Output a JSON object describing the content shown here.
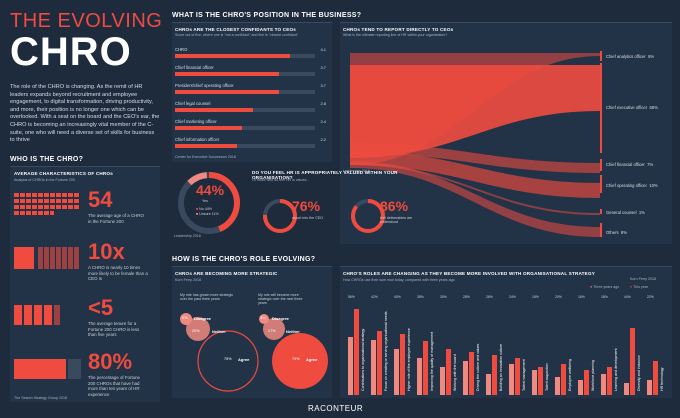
{
  "header": {
    "title_small": "THE EVOLVING",
    "title_big": "CHRO"
  },
  "intro": "The role of the CHRO is changing. As the remit of HR leaders expands beyond recruitment and employee engagement, to digital transformation, driving productivity, and more, their position is no longer one which can be overlooked. With a seat on the board and the CEO's ear, the CHRO is becoming an increasingly vital member of the C-suite, one who will need a diverse set of skills for business to thrive",
  "who": {
    "heading": "WHO IS THE CHRO?",
    "panel_title": "AVERAGE CHARACTERISTICS OF CHROs",
    "panel_sub": "Analysis of CHROs in the Fortune 200",
    "stats": [
      {
        "value": "54",
        "text": "The average age of a CHRO in the Fortune 200"
      },
      {
        "value": "10x",
        "text": "A CHRO is nearly 10 times more likely to be female than a CEO is"
      },
      {
        "value": "<5",
        "text": "The average tenure for a Fortune 200 CHRO is less than five years"
      },
      {
        "value": "80%",
        "text": "The percentage of Fortune 200 CHROs that have had more than ten years of HR experience"
      }
    ],
    "source": "The Search Strategy Group 2018"
  },
  "position": {
    "heading": "WHAT IS THE CHRO'S POSITION IN THE BUSINESS?",
    "confidants": {
      "title": "CHROs ARE THE CLOSEST CONFIDANTS TO CEOs",
      "sub": "Score out of five, where one is \"not a confidant\" and five is \"closest confidant\"",
      "items": [
        {
          "label": "CHRO",
          "value": "4.1",
          "fraction": 0.82
        },
        {
          "label": "Chief financial officer",
          "value": "3.7",
          "fraction": 0.74
        },
        {
          "label": "President/chief operating officer",
          "value": "3.7",
          "fraction": 0.74
        },
        {
          "label": "Chief legal counsel",
          "value": "2.8",
          "fraction": 0.56
        },
        {
          "label": "Chief marketing officer",
          "value": "2.4",
          "fraction": 0.48
        },
        {
          "label": "Chief information officer",
          "value": "2.2",
          "fraction": 0.44
        }
      ],
      "source": "Center for Executive Succession 2018"
    },
    "reporting": {
      "title": "CHROs TEND TO REPORT DIRECTLY TO CEOs",
      "sub": "What is the ultimate reporting line of HR within your organisation?",
      "items": [
        {
          "label": "Chief analytics officer",
          "value": "6%"
        },
        {
          "label": "Chief executive officer",
          "value": "68%"
        },
        {
          "label": "Chief financial officer",
          "value": "7%"
        },
        {
          "label": "Chief operating officer",
          "value": "10%"
        },
        {
          "label": "General counsel",
          "value": "1%"
        },
        {
          "label": "Others",
          "value": "8%"
        }
      ],
      "source": "Leadership 2018"
    },
    "valued": {
      "title": "DO YOU FEEL HR IS APPROPRIATELY VALUED WITHIN YOUR ORGANISATION?",
      "main_value": "44%",
      "main_label": "Yes",
      "legend": [
        {
          "label": "No",
          "value": "44%"
        },
        {
          "label": "Unsure",
          "value": "11%"
        }
      ],
      "of_those": "Of those who do feel HR is valued...",
      "sub1": {
        "value": "76%",
        "text": "report into the CEO"
      },
      "sub2": {
        "value": "86%",
        "text": "feel deliverables are understood"
      },
      "source": "Leadership 2018"
    }
  },
  "evolving": {
    "heading": "HOW IS THE CHRO'S ROLE EVOLVING?",
    "strategic": {
      "title": "CHROs ARE BECOMING MORE STRATEGIC",
      "q1": "My role has grown more strategic over the past three years",
      "q2": "My role will become more strategic over the next three years",
      "bubbles": [
        {
          "label": "Disagree",
          "value": "5%"
        },
        {
          "label": "Neither",
          "value": "20%"
        },
        {
          "label": "Agree",
          "value": "75%"
        },
        {
          "label": "Disagree",
          "value": "3%"
        },
        {
          "label": "Neither",
          "value": "17%"
        },
        {
          "label": "Agree",
          "value": "79%"
        }
      ],
      "source": "Korn Ferry 2018"
    },
    "roles": {
      "title": "CHRO'S ROLES ARE CHANGING AS THEY BECOME MORE INVOLVED WITH ORGANISATIONAL STRATEGY",
      "sub": "How CHROs use their sum now today, compared with three years ago",
      "legend": [
        "Three years ago",
        "This year"
      ],
      "source": "Korn Ferry 2018",
      "items": [
        {
          "label": "Contributions to organisational strategy",
          "ago": 38,
          "now": 56
        },
        {
          "label": "Focus on creating or serving organisational needs",
          "ago": 36,
          "now": 42
        },
        {
          "label": "Higher role of the employee experience",
          "ago": 30,
          "now": 40
        },
        {
          "label": "Improving the quality of management",
          "ago": 24,
          "now": 35
        },
        {
          "label": "Working with the board",
          "ago": 18,
          "now": 30
        },
        {
          "label": "Driving the culture and values",
          "ago": 22,
          "now": 28
        },
        {
          "label": "Building an innovation culture",
          "ago": 14,
          "now": 26
        },
        {
          "label": "Talent management",
          "ago": 20,
          "now": 24
        },
        {
          "label": "Talent acquisition",
          "ago": 16,
          "now": 18
        },
        {
          "label": "Employee wellbeing",
          "ago": 12,
          "now": 20
        },
        {
          "label": "Workforce planning",
          "ago": 10,
          "now": 16
        },
        {
          "label": "Learning and development",
          "ago": 14,
          "now": 18
        },
        {
          "label": "Diversity and inclusion",
          "ago": 8,
          "now": 44
        },
        {
          "label": "HR technology",
          "ago": 10,
          "now": 22
        }
      ]
    }
  },
  "footer": {
    "logo": "RACONTEUR"
  },
  "colors": {
    "bg": "#1d2b3d",
    "accent": "#ef4b3f",
    "panel": "#3a4a5e"
  }
}
